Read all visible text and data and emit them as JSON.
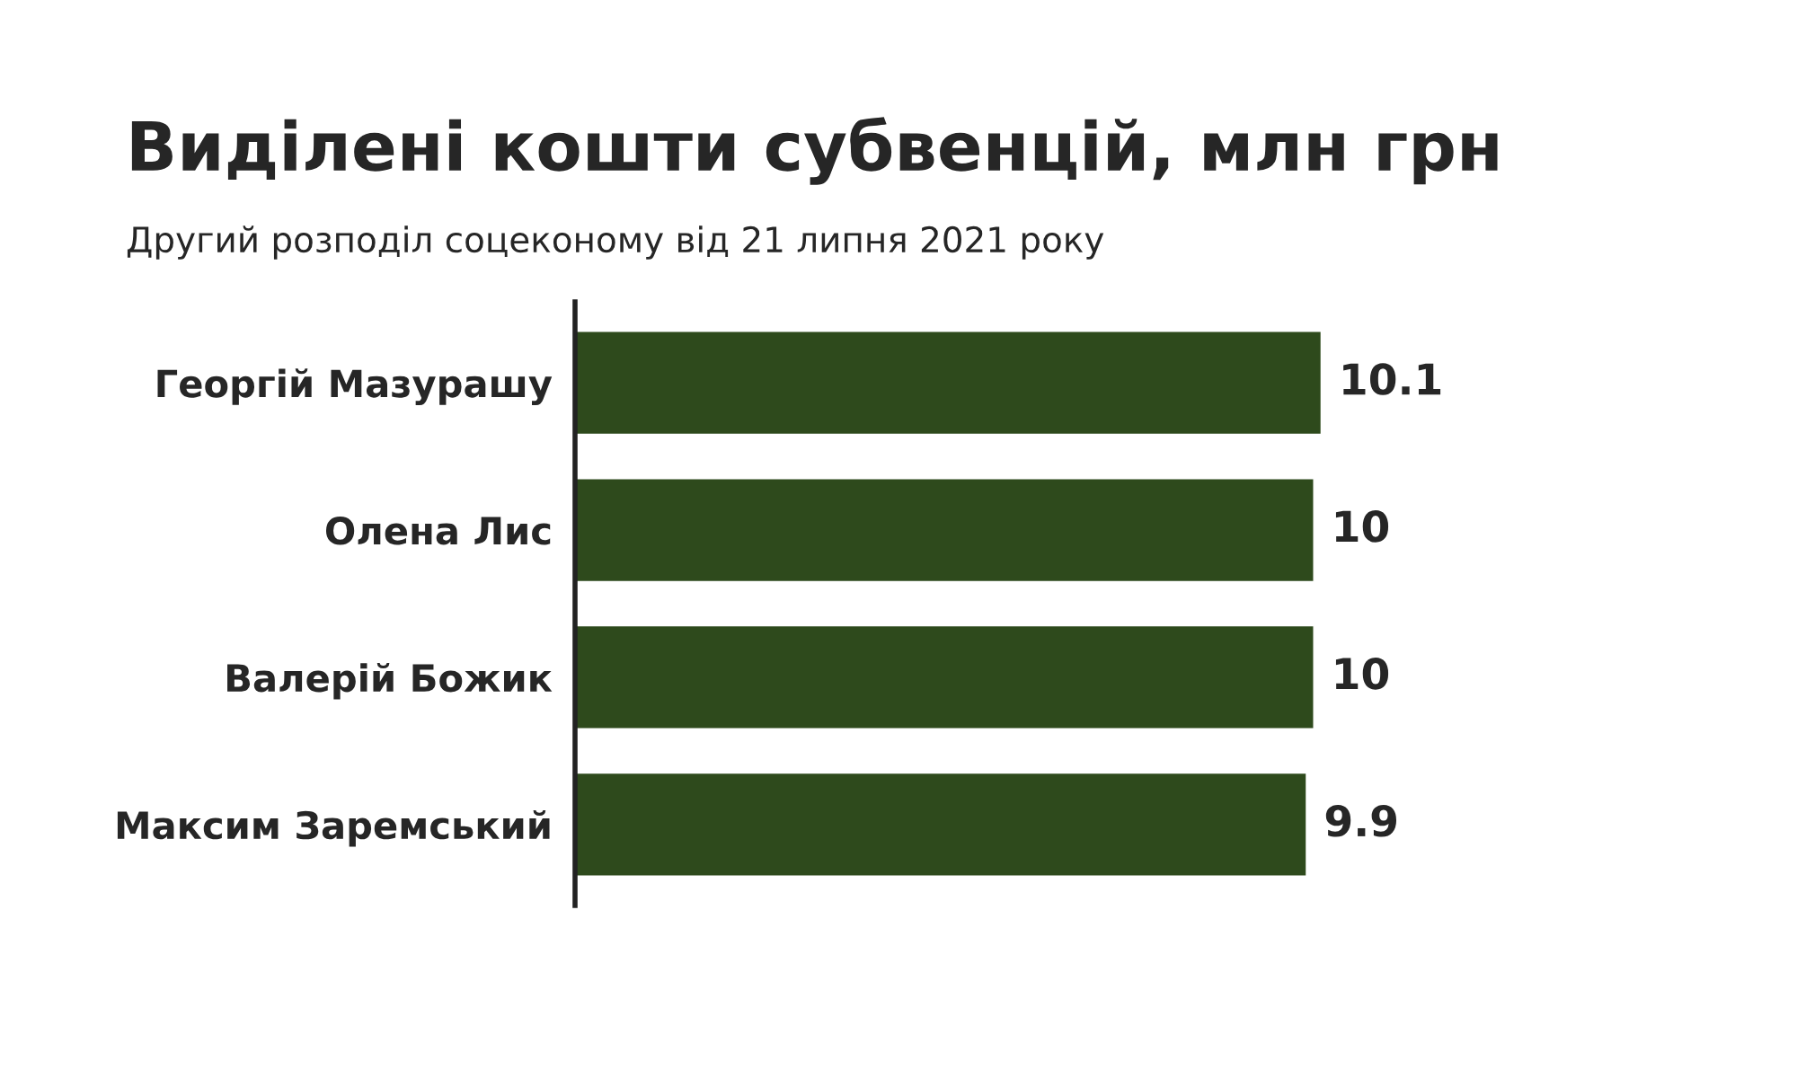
{
  "chart_data": {
    "type": "bar",
    "orientation": "horizontal",
    "title": "Виділені кошти субвенцій, млн грн",
    "subtitle": "Другий розподіл соцеконому від 21 липня 2021 року",
    "categories": [
      "Георгій Мазурашу",
      "Олена Лис",
      "Валерій Божик",
      "Максим Заремський"
    ],
    "values": [
      10.1,
      10,
      10,
      9.9
    ],
    "color": "#2e4a1c",
    "data_labels": true,
    "grid": false
  }
}
